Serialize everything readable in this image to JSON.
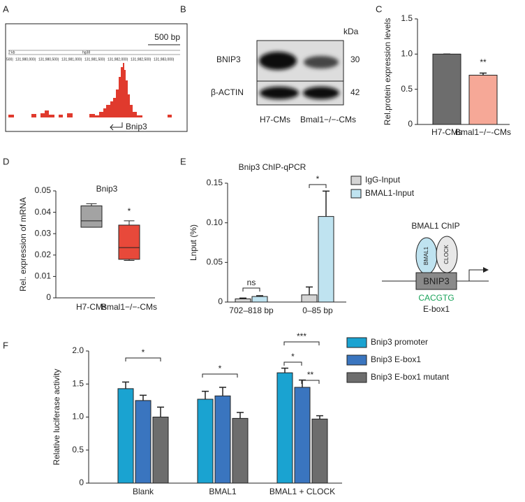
{
  "panel_labels": [
    "A",
    "B",
    "C",
    "D",
    "E",
    "F"
  ],
  "genome_track": {
    "scale": "500 bp",
    "left": "2 kb",
    "assembly": "hg38",
    "coords": [
      "500|",
      "131,980,000|",
      "131,980,500|",
      "131,981,000|",
      "131,981,500|",
      "131,982,000|",
      "131,982,500|",
      "131,983,000|"
    ],
    "gene": "Bnip3"
  },
  "blot": {
    "unit": "kDa",
    "rows": [
      {
        "label": "BNIP3",
        "size": "30"
      },
      {
        "label": "β-ACTIN",
        "size": "42"
      }
    ],
    "lanes": [
      "H7-CMs",
      "Bmal1−/−-CMs"
    ]
  },
  "diagram": {
    "title": "BMAL1 ChIP",
    "factors": [
      "BMAL1",
      "CLOCK"
    ],
    "gene": "BNIP3",
    "motif": "CACGTG",
    "site": "E-box1"
  },
  "chart_data": [
    {
      "type": "bar",
      "ylabel": "Rel.protein expression levels",
      "categories": [
        "H7-CMs",
        "Bmal1−/−-CMs"
      ],
      "values": [
        1.0,
        0.7
      ],
      "errors": [
        0,
        0.03
      ],
      "colors": [
        "#6d6d6d",
        "#f6a897"
      ],
      "ylim": [
        0,
        1.5
      ],
      "yticks": [
        0,
        0.5,
        {
          "value": 1,
          "label": "1.0"
        },
        1.5
      ],
      "annotations": [
        "**"
      ]
    },
    {
      "type": "box",
      "title": "Bnip3",
      "ylabel": "Rel. expression of mRNA",
      "categories": [
        "H7-CMs",
        "Bmal1−/−-CMs"
      ],
      "values": [
        [
          0.033,
          0.033,
          0.036,
          0.043,
          0.044
        ],
        [
          0.0175,
          0.018,
          0.0235,
          0.034,
          0.036
        ]
      ],
      "colors": [
        "#a3a3a3",
        "#e8493a"
      ],
      "ylim": [
        0,
        0.05
      ],
      "yticks": [
        0,
        0.01,
        0.02,
        0.03,
        0.04,
        0.05
      ],
      "annotations": [
        "*"
      ]
    },
    {
      "type": "bar",
      "title": "Bnip3 ChIP-qPCR",
      "ylabel": "Lnput (%)",
      "categories": [
        "702–818 bp",
        "0–85 bp"
      ],
      "series": [
        {
          "name": "IgG-Input",
          "color": "#d4d4d4",
          "values": [
            0.004,
            0.009
          ],
          "errors": [
            0.001,
            0.01
          ]
        },
        {
          "name": "BMAL1-Input",
          "color": "#bfe3f0",
          "values": [
            0.007,
            0.108
          ],
          "errors": [
            0.001,
            0.032
          ]
        }
      ],
      "ylim": [
        0,
        0.15
      ],
      "yticks": [
        0,
        0.05,
        {
          "value": 0.1,
          "label": "0.10"
        },
        0.15
      ],
      "annotations": [
        "ns",
        "*"
      ]
    },
    {
      "type": "bar",
      "ylabel": "Relative luciferase activity",
      "categories": [
        "Blank",
        "BMAL1",
        "BMAL1 + CLOCK"
      ],
      "series": [
        {
          "name": "Bnip3 promoter",
          "color": "#1aa3d1",
          "values": [
            1.43,
            1.27,
            1.67
          ],
          "errors": [
            0.1,
            0.12,
            0.07
          ]
        },
        {
          "name": "Bnip3 E-box1",
          "color": "#3a75bf",
          "values": [
            1.25,
            1.32,
            1.45
          ],
          "errors": [
            0.08,
            0.13,
            0.11
          ]
        },
        {
          "name": "Bnip3 E-box1 mutant",
          "color": "#6d6d6d",
          "values": [
            1.0,
            0.98,
            0.97
          ],
          "errors": [
            0.15,
            0.09,
            0.05
          ]
        }
      ],
      "ylim": [
        0,
        2.0
      ],
      "yticks": [
        0,
        0.5,
        {
          "value": 1,
          "label": "1.0"
        },
        1.5,
        {
          "value": 2,
          "label": "2.0"
        }
      ],
      "annotations": [
        "*",
        "*",
        "***",
        "*",
        "**"
      ]
    }
  ]
}
